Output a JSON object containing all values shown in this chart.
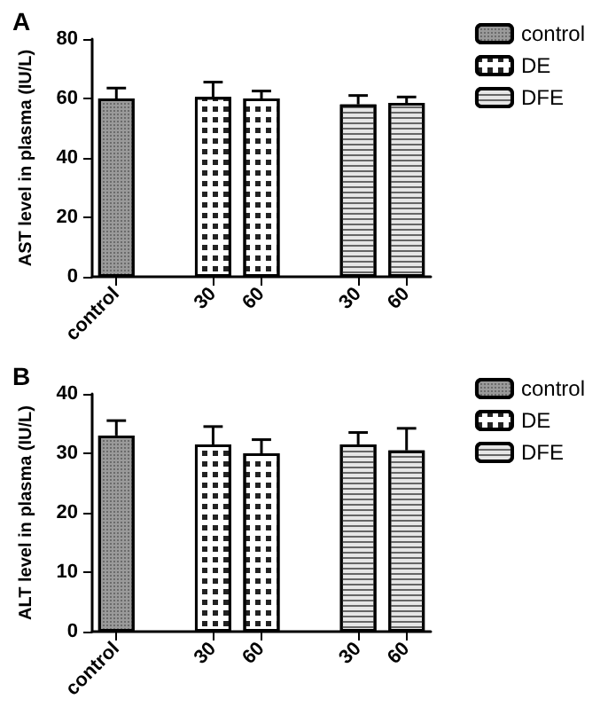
{
  "chart_data": [
    {
      "type": "bar",
      "title": "A",
      "ylabel": "AST level in plasma (IU/L)",
      "categories": [
        "control",
        null,
        "30",
        "60",
        null,
        "30",
        "60"
      ],
      "series": [
        {
          "name": "control",
          "color": "#9a9a9a",
          "values": [
            60,
            null,
            null,
            null,
            null,
            null,
            null
          ],
          "errors": [
            [
              60,
              63.5
            ],
            null,
            null,
            null,
            null,
            null,
            null
          ]
        },
        {
          "name": "DE",
          "color": "#ffffff",
          "values": [
            null,
            null,
            60.5,
            60,
            null,
            null,
            null
          ],
          "errors": [
            null,
            null,
            [
              60.5,
              65.5
            ],
            [
              60,
              62.5
            ],
            null,
            null,
            null
          ]
        },
        {
          "name": "DFE",
          "color": "#e6e6e6",
          "values": [
            null,
            null,
            null,
            null,
            null,
            58,
            58.5
          ],
          "errors": [
            null,
            null,
            null,
            null,
            null,
            [
              58,
              61
            ],
            [
              58.5,
              60.5
            ]
          ]
        }
      ],
      "ylim": [
        0,
        80
      ],
      "yticks": [
        0,
        20,
        40,
        60,
        80
      ],
      "grid": false,
      "legend": "top right"
    },
    {
      "type": "bar",
      "title": "B",
      "ylabel": "ALT level in plasma (IU/L)",
      "categories": [
        "control",
        null,
        "30",
        "60",
        null,
        "30",
        "60"
      ],
      "series": [
        {
          "name": "control",
          "color": "#9a9a9a",
          "values": [
            33,
            null,
            null,
            null,
            null,
            null,
            null
          ],
          "errors": [
            [
              33,
              35.5
            ],
            null,
            null,
            null,
            null,
            null,
            null
          ]
        },
        {
          "name": "DE",
          "color": "#ffffff",
          "values": [
            null,
            null,
            31.5,
            30,
            null,
            null,
            null
          ],
          "errors": [
            null,
            null,
            [
              31.5,
              34.5
            ],
            [
              30,
              32.3
            ],
            null,
            null,
            null
          ]
        },
        {
          "name": "DFE",
          "color": "#e6e6e6",
          "values": [
            null,
            null,
            null,
            null,
            null,
            31.5,
            30.5
          ],
          "errors": [
            null,
            null,
            null,
            null,
            null,
            [
              31.5,
              33.5
            ],
            [
              30.5,
              34.2
            ]
          ]
        }
      ],
      "ylim": [
        0,
        40
      ],
      "yticks": [
        0,
        10,
        20,
        30,
        40
      ],
      "grid": false,
      "legend": "top right"
    }
  ]
}
